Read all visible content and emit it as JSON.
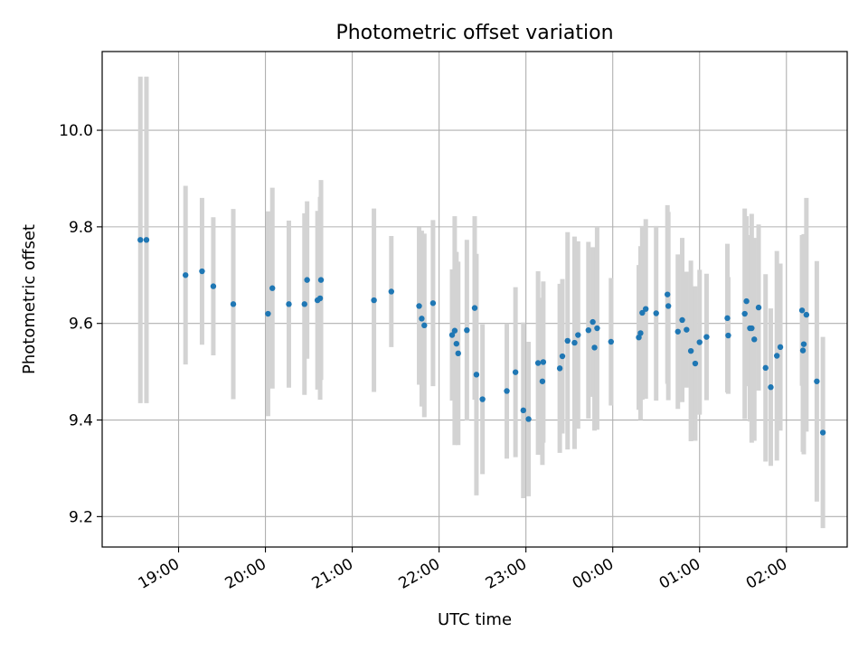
{
  "chart_data": {
    "type": "scatter",
    "title": "Photometric offset variation",
    "xlabel": "UTC time",
    "ylabel": "Photometric offset",
    "grid": true,
    "legend": "none",
    "x_tick_values": [
      19.0,
      20.0,
      21.0,
      22.0,
      23.0,
      24.0,
      25.0,
      26.0
    ],
    "x_tick_labels": [
      "19:00",
      "20:00",
      "21:00",
      "22:00",
      "23:00",
      "00:00",
      "01:00",
      "02:00"
    ],
    "xlim": [
      18.12,
      26.7
    ],
    "y_ticks": [
      "9.2",
      "9.4",
      "9.6",
      "9.8",
      "10.0"
    ],
    "ylim": [
      9.137,
      10.163
    ],
    "marker_color": "#1f77b4",
    "errorbar_color": "#d3d3d3",
    "series": [
      {
        "x": [
          18.56,
          18.63,
          19.08,
          19.27,
          19.4,
          19.63,
          20.03,
          20.08,
          20.27,
          20.45,
          20.48,
          20.6,
          20.63,
          20.64,
          21.25,
          21.45,
          21.77,
          21.8,
          21.83,
          21.93,
          22.15,
          22.18,
          22.2,
          22.22,
          22.32,
          22.41,
          22.43,
          22.5,
          22.78,
          22.88,
          22.97,
          23.03,
          23.14,
          23.19,
          23.2,
          23.39,
          23.42,
          23.48,
          23.56,
          23.6,
          23.72,
          23.77,
          23.79,
          23.82,
          23.98,
          24.3,
          24.32,
          24.34,
          24.38,
          24.5,
          24.63,
          24.64,
          24.75,
          24.8,
          24.85,
          24.9,
          24.95,
          25.0,
          25.08,
          25.32,
          25.33,
          25.52,
          25.54,
          25.58,
          25.6,
          25.63,
          25.68,
          25.76,
          25.82,
          25.89,
          25.93,
          26.18,
          26.19,
          26.2,
          26.23,
          26.35,
          26.42
        ],
        "y": [
          9.773,
          9.773,
          9.7,
          9.708,
          9.677,
          9.64,
          9.62,
          9.673,
          9.64,
          9.64,
          9.69,
          9.648,
          9.652,
          9.69,
          9.648,
          9.666,
          9.636,
          9.61,
          9.596,
          9.642,
          9.576,
          9.585,
          9.558,
          9.538,
          9.586,
          9.632,
          9.494,
          9.443,
          9.46,
          9.499,
          9.42,
          9.402,
          9.518,
          9.48,
          9.52,
          9.507,
          9.532,
          9.564,
          9.56,
          9.576,
          9.586,
          9.603,
          9.55,
          9.59,
          9.562,
          9.571,
          9.58,
          9.622,
          9.63,
          9.621,
          9.66,
          9.636,
          9.583,
          9.607,
          9.587,
          9.543,
          9.517,
          9.561,
          9.572,
          9.611,
          9.575,
          9.62,
          9.646,
          9.59,
          9.59,
          9.567,
          9.633,
          9.508,
          9.468,
          9.533,
          9.551,
          9.627,
          9.544,
          9.557,
          9.618,
          9.48,
          9.374
        ],
        "yerr": [
          0.338,
          0.338,
          0.185,
          0.152,
          0.143,
          0.197,
          0.212,
          0.208,
          0.173,
          0.188,
          0.163,
          0.185,
          0.21,
          0.207,
          0.19,
          0.115,
          0.163,
          0.182,
          0.19,
          0.172,
          0.136,
          0.237,
          0.19,
          0.19,
          0.187,
          0.19,
          0.25,
          0.155,
          0.14,
          0.176,
          0.182,
          0.16,
          0.19,
          0.173,
          0.167,
          0.175,
          0.16,
          0.225,
          0.22,
          0.194,
          0.183,
          0.155,
          0.172,
          0.21,
          0.132,
          0.15,
          0.18,
          0.18,
          0.186,
          0.181,
          0.185,
          0.195,
          0.16,
          0.17,
          0.12,
          0.187,
          0.16,
          0.15,
          0.131,
          0.154,
          0.121,
          0.218,
          0.176,
          0.193,
          0.237,
          0.21,
          0.172,
          0.194,
          0.163,
          0.217,
          0.173,
          0.156,
          0.21,
          0.228,
          0.242,
          0.249,
          0.198
        ]
      }
    ]
  }
}
